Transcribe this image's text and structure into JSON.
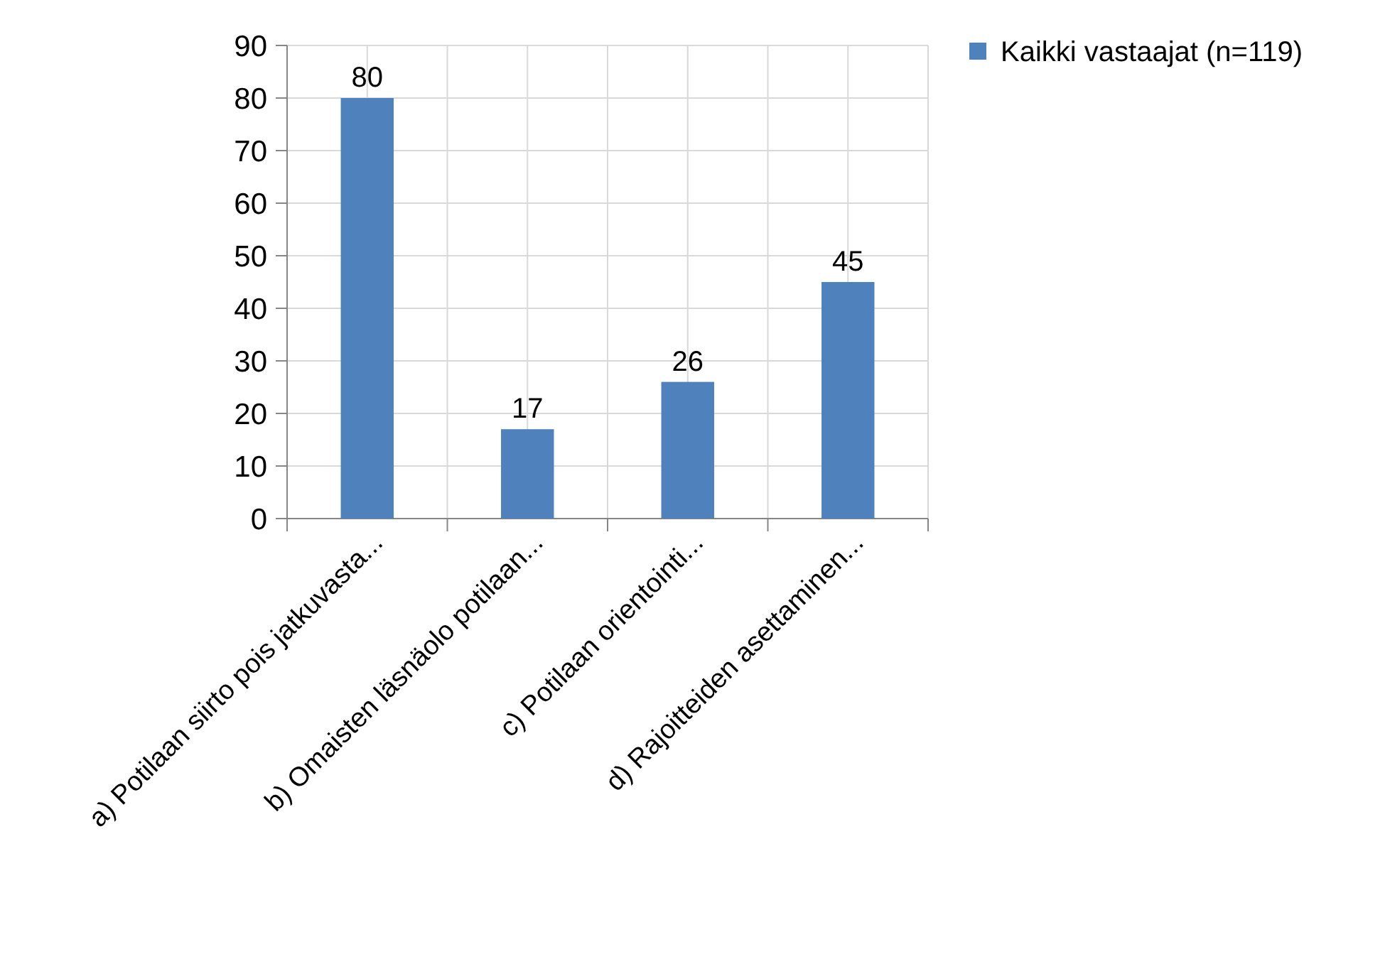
{
  "chart_data": {
    "type": "bar",
    "categories": [
      "a) Potilaan siirto pois jatkuvasta...",
      "b) Omaisten läsnäolo potilaan...",
      "c) Potilaan orientointi...",
      "d) Rajoitteiden asettaminen..."
    ],
    "series": [
      {
        "name": "Kaikki vastaajat (n=119)",
        "color": "#4f81bd",
        "values": [
          80,
          17,
          26,
          45
        ]
      }
    ],
    "ylim": [
      0,
      90
    ],
    "yticks": [
      0,
      10,
      20,
      30,
      40,
      50,
      60,
      70,
      80,
      90
    ],
    "grid": true,
    "legend": "top right",
    "data_labels": true
  }
}
